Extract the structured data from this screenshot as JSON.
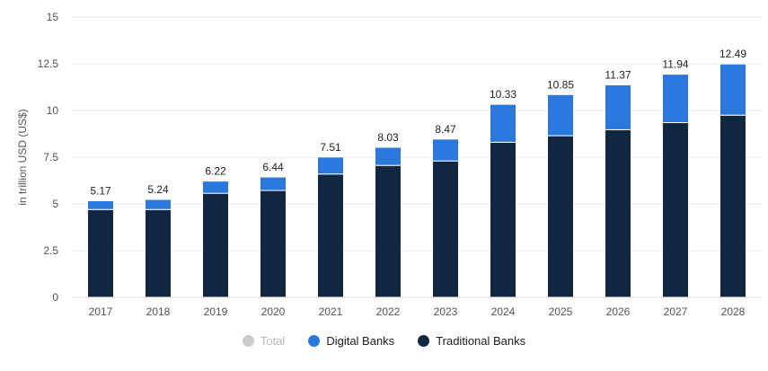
{
  "chart_data": {
    "type": "bar",
    "stacked": true,
    "categories": [
      "2017",
      "2018",
      "2019",
      "2020",
      "2021",
      "2022",
      "2023",
      "2024",
      "2025",
      "2026",
      "2027",
      "2028"
    ],
    "series": [
      {
        "name": "Traditional Banks",
        "color": "#0f2740",
        "values": [
          4.7,
          4.7,
          5.57,
          5.72,
          6.6,
          7.06,
          7.3,
          8.3,
          8.65,
          8.97,
          9.35,
          9.75
        ]
      },
      {
        "name": "Digital Banks",
        "color": "#2a78dc",
        "values": [
          0.47,
          0.54,
          0.65,
          0.72,
          0.91,
          0.97,
          1.17,
          2.03,
          2.2,
          2.4,
          2.59,
          2.74
        ]
      }
    ],
    "totals": [
      "5.17",
      "5.24",
      "6.22",
      "6.44",
      "7.51",
      "8.03",
      "8.47",
      "10.33",
      "10.85",
      "11.37",
      "11.94",
      "12.49"
    ],
    "ylabel": "in trillion USD (US$)",
    "xlabel": "",
    "ylim": [
      0,
      15
    ],
    "yticks": [
      "0",
      "2.5",
      "5",
      "7.5",
      "10",
      "12.5",
      "15"
    ],
    "grid": true,
    "legend": {
      "position": "bottom",
      "items": [
        {
          "label": "Total",
          "color": "#cccccc",
          "state": "disabled"
        },
        {
          "label": "Digital Banks",
          "color": "#2a78dc",
          "state": "active"
        },
        {
          "label": "Traditional Banks",
          "color": "#0f2740",
          "state": "active"
        }
      ]
    }
  }
}
